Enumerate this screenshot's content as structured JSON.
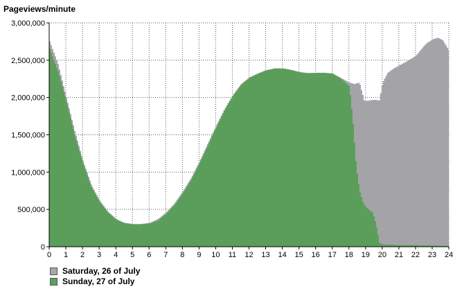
{
  "chart_data": {
    "type": "area",
    "title": "Pageviews/minute",
    "ylim": [
      0,
      3000000
    ],
    "xlim": [
      0,
      24
    ],
    "y_ticks": [
      0,
      500000,
      1000000,
      1500000,
      2000000,
      2500000,
      3000000
    ],
    "y_tick_labels": [
      "0",
      "500,000",
      "1,000,000",
      "1,500,000",
      "2,000,000",
      "2,500,000",
      "3,000,000"
    ],
    "x_ticks": [
      0,
      1,
      2,
      3,
      4,
      5,
      6,
      7,
      8,
      9,
      10,
      11,
      12,
      13,
      14,
      15,
      16,
      17,
      18,
      19,
      20,
      21,
      22,
      23,
      24
    ],
    "x_tick_labels": [
      "0",
      "1",
      "2",
      "3",
      "4",
      "5",
      "6",
      "7",
      "8",
      "9",
      "10",
      "11",
      "12",
      "13",
      "14",
      "15",
      "16",
      "17",
      "18",
      "19",
      "20",
      "21",
      "22",
      "23",
      "24"
    ],
    "grid": true,
    "legend_position": "bottom-left",
    "series": [
      {
        "name": "Saturday, 26 of July",
        "color": "#a7a6ab",
        "x": [
          0,
          0.5,
          1,
          1.5,
          2,
          2.5,
          3,
          3.5,
          4,
          4.5,
          5,
          5.5,
          6,
          6.5,
          7,
          7.5,
          8,
          8.5,
          9,
          9.5,
          10,
          10.5,
          11,
          11.5,
          12,
          12.5,
          13,
          13.5,
          14,
          14.5,
          15,
          15.5,
          16,
          16.5,
          17,
          17.5,
          18,
          18.3,
          18.6,
          18.9,
          19.2,
          19.5,
          19.8,
          20,
          20.3,
          20.6,
          21,
          21.5,
          22,
          22.3,
          22.6,
          23,
          23.3,
          23.6,
          24
        ],
        "values": [
          2750000,
          2450000,
          2000000,
          1550000,
          1150000,
          830000,
          620000,
          470000,
          370000,
          320000,
          305000,
          305000,
          320000,
          370000,
          460000,
          580000,
          740000,
          920000,
          1140000,
          1380000,
          1620000,
          1840000,
          2030000,
          2180000,
          2270000,
          2320000,
          2370000,
          2380000,
          2380000,
          2360000,
          2340000,
          2330000,
          2330000,
          2330000,
          2320000,
          2260000,
          2200000,
          2180000,
          2200000,
          1950000,
          1960000,
          1970000,
          1960000,
          2200000,
          2330000,
          2380000,
          2430000,
          2490000,
          2560000,
          2640000,
          2720000,
          2780000,
          2800000,
          2770000,
          2620000
        ]
      },
      {
        "name": "Sunday, 27 of July",
        "color": "#5da05d",
        "x": [
          0,
          0.5,
          1,
          1.5,
          2,
          2.5,
          3,
          3.5,
          4,
          4.5,
          5,
          5.5,
          6,
          6.5,
          7,
          7.5,
          8,
          8.5,
          9,
          9.5,
          10,
          10.5,
          11,
          11.5,
          12,
          12.5,
          13,
          13.5,
          14,
          14.5,
          15,
          15.5,
          16,
          16.5,
          17,
          17.5,
          18,
          18.2,
          18.4,
          18.6,
          18.8,
          19,
          19.2,
          19.4,
          19.6,
          19.8,
          20,
          21,
          22,
          23,
          24
        ],
        "values": [
          2650000,
          2350000,
          1950000,
          1500000,
          1120000,
          800000,
          600000,
          460000,
          360000,
          315000,
          300000,
          300000,
          310000,
          350000,
          440000,
          560000,
          720000,
          900000,
          1120000,
          1360000,
          1600000,
          1830000,
          2020000,
          2170000,
          2260000,
          2320000,
          2360000,
          2390000,
          2390000,
          2370000,
          2340000,
          2320000,
          2330000,
          2330000,
          2320000,
          2250000,
          2150000,
          1700000,
          1100000,
          750000,
          600000,
          530000,
          490000,
          460000,
          300000,
          50000,
          30000,
          20000,
          20000,
          15000,
          10000
        ]
      }
    ]
  }
}
